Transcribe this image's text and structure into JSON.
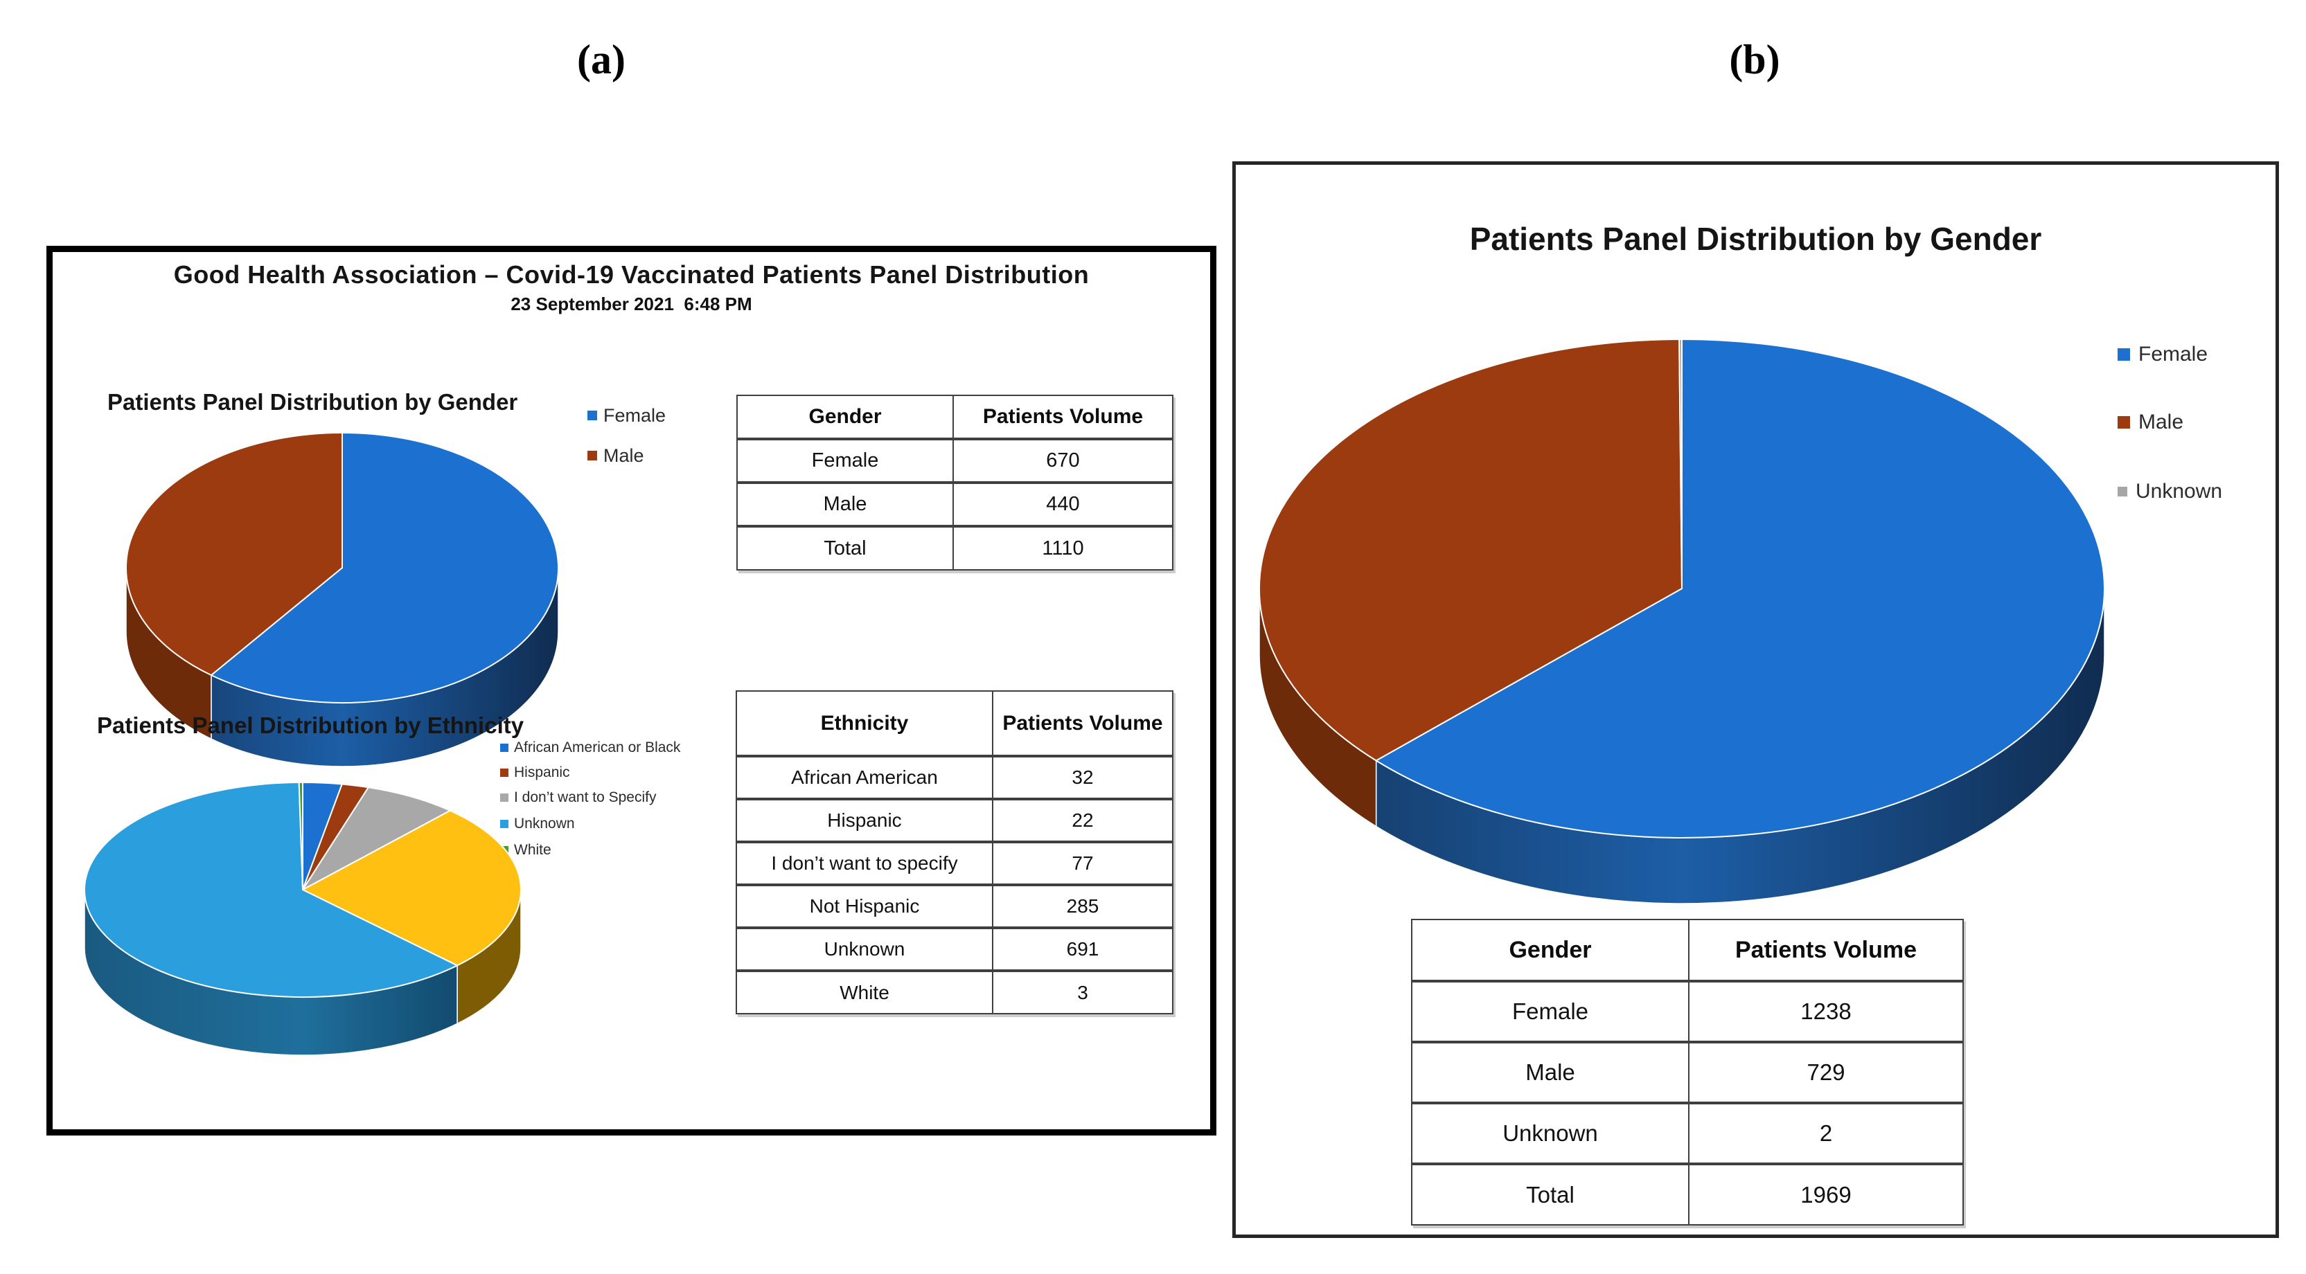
{
  "figure_labels": {
    "a": "(a)",
    "b": "(b)"
  },
  "panel_a": {
    "title": "Good Health Association – Covid-19 Vaccinated Patients Panel Distribution",
    "subtitle": "23 September 2021  6:48 PM",
    "gender_table": {
      "col_headers": [
        "Gender",
        "Patients Volume"
      ],
      "rows": [
        {
          "label": "Female",
          "value": "670"
        },
        {
          "label": "Male",
          "value": "440"
        },
        {
          "label": "Total",
          "value": "1110"
        }
      ]
    },
    "ethnicity_table": {
      "col_headers": [
        "Ethnicity",
        "Patients Volume"
      ],
      "rows": [
        {
          "label": "African American",
          "value": "32"
        },
        {
          "label": "Hispanic",
          "value": "22"
        },
        {
          "label": "I don’t want to specify",
          "value": "77"
        },
        {
          "label": "Not Hispanic",
          "value": "285"
        },
        {
          "label": "Unknown",
          "value": "691"
        },
        {
          "label": "White",
          "value": "3"
        }
      ]
    }
  },
  "panel_b": {
    "gender_table": {
      "col_headers": [
        "Gender",
        "Patients Volume"
      ],
      "rows": [
        {
          "label": "Female",
          "value": "1238"
        },
        {
          "label": "Male",
          "value": "729"
        },
        {
          "label": "Unknown",
          "value": "2"
        },
        {
          "label": "Total",
          "value": "1969"
        }
      ]
    }
  },
  "chart_data": [
    {
      "id": "panel_a_gender_pie",
      "type": "pie",
      "style": "pie-3d",
      "title": "Patients Panel Distribution by Gender",
      "total": 1110,
      "start_angle_deg": 0,
      "direction": "clockwise",
      "legend_position": "right",
      "slices": [
        {
          "label": "Female",
          "value": 670,
          "color": "#1C70CF",
          "side": [
            "#14365F",
            "#1D5EA6",
            "#102C50"
          ]
        },
        {
          "label": "Male",
          "value": 440,
          "color": "#9C3B10",
          "side": "#6E2B09"
        }
      ]
    },
    {
      "id": "panel_a_ethnicity_pie",
      "type": "pie",
      "style": "pie-3d",
      "title": "Patients Panel Distribution by Ethnicity",
      "total": 1110,
      "start_angle_deg": 0,
      "direction": "clockwise",
      "legend_position": "right",
      "slices": [
        {
          "label": "African American or Black",
          "value": 32,
          "color": "#1C70CF",
          "side": "#124A7E"
        },
        {
          "label": "Hispanic",
          "value": 22,
          "color": "#9C3B10",
          "side": "#6E2B09"
        },
        {
          "label": "I don’t want to Specify",
          "value": 77,
          "color": "#A8A8A8",
          "side": "#767676"
        },
        {
          "label": "Not Hispanic",
          "value": 285,
          "color": "#FFC011",
          "side": "#7D5C04",
          "in_legend": false
        },
        {
          "label": "Unknown",
          "value": 691,
          "color": "#2B9FDE",
          "side": [
            "#1A5A80",
            "#1F6F9C",
            "#0D3C5C"
          ]
        },
        {
          "label": "White",
          "value": 3,
          "color": "#3BA226",
          "side": "#2A7A1C"
        }
      ]
    },
    {
      "id": "panel_b_gender_pie",
      "type": "pie",
      "style": "pie-3d",
      "title": "Patients Panel Distribution by Gender",
      "total": 1969,
      "start_angle_deg": 0,
      "direction": "clockwise",
      "legend_position": "right",
      "slices": [
        {
          "label": "Female",
          "value": 1238,
          "color": "#1C70CF",
          "side": [
            "#14365F",
            "#1D5EA6",
            "#102C50"
          ]
        },
        {
          "label": "Male",
          "value": 729,
          "color": "#9C3B10",
          "side": "#6E2B09"
        },
        {
          "label": "Unknown",
          "value": 2,
          "color": "#A6A6A6",
          "side": "#8C8C8C"
        }
      ]
    }
  ]
}
